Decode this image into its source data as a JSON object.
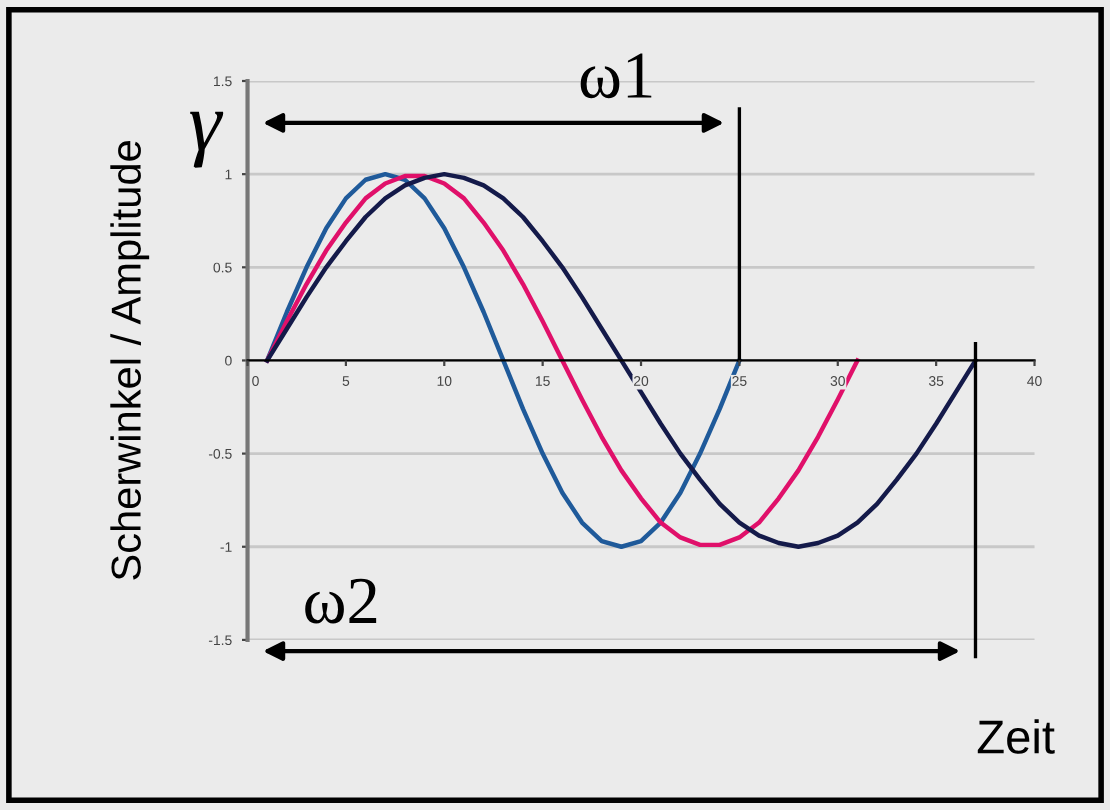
{
  "chart_data": {
    "type": "line",
    "ylabel": "Scherwinkel / Amplitude",
    "xlabel": "Zeit",
    "annotations": [
      "γ",
      "ω1",
      "ω2"
    ],
    "xlim": [
      0,
      40
    ],
    "xticks": [
      0,
      5,
      10,
      15,
      20,
      25,
      30,
      35,
      40
    ],
    "ylim": [
      -1.5,
      1.5
    ],
    "yticks": [
      -1.5,
      -1,
      -0.5,
      0,
      0.5,
      1,
      1.5
    ],
    "grid": "y",
    "marker": "none",
    "line_style": "solid",
    "ref_lines": [
      {
        "axis": "x",
        "value": 25,
        "color": "#000000"
      },
      {
        "axis": "x",
        "value": 37,
        "color": "#000000"
      }
    ],
    "series": [
      {
        "color": "#1f5a9a",
        "x": [
          1,
          2,
          3,
          4,
          5,
          6,
          7,
          8,
          9,
          10,
          11,
          12,
          13,
          14,
          15,
          16,
          17,
          18,
          19,
          20,
          21,
          22,
          23,
          24,
          25
        ],
        "values": [
          0,
          0.26,
          0.5,
          0.71,
          0.87,
          0.97,
          1,
          0.97,
          0.87,
          0.71,
          0.5,
          0.26,
          0,
          -0.26,
          -0.5,
          -0.71,
          -0.87,
          -0.97,
          -1,
          -0.97,
          -0.87,
          -0.71,
          -0.5,
          -0.26,
          0
        ]
      },
      {
        "color": "#e0106a",
        "x": [
          1,
          2,
          3,
          4,
          5,
          6,
          7,
          8,
          9,
          10,
          11,
          12,
          13,
          14,
          15,
          16,
          17,
          18,
          19,
          20,
          21,
          22,
          23,
          24,
          25,
          26,
          27,
          28,
          29,
          30,
          31
        ],
        "values": [
          0,
          0.21,
          0.41,
          0.59,
          0.74,
          0.87,
          0.95,
          0.99,
          0.99,
          0.95,
          0.87,
          0.74,
          0.59,
          0.41,
          0.21,
          0,
          -0.21,
          -0.41,
          -0.59,
          -0.74,
          -0.87,
          -0.95,
          -0.99,
          -0.99,
          -0.95,
          -0.87,
          -0.74,
          -0.59,
          -0.41,
          -0.21,
          0
        ]
      },
      {
        "color": "#141a4a",
        "x": [
          1,
          2,
          3,
          4,
          5,
          6,
          7,
          8,
          9,
          10,
          11,
          12,
          13,
          14,
          15,
          16,
          17,
          18,
          19,
          20,
          21,
          22,
          23,
          24,
          25,
          26,
          27,
          28,
          29,
          30,
          31,
          32,
          33,
          34,
          35,
          36,
          37
        ],
        "values": [
          0,
          0.17,
          0.34,
          0.5,
          0.64,
          0.77,
          0.87,
          0.94,
          0.98,
          1,
          0.98,
          0.94,
          0.87,
          0.77,
          0.64,
          0.5,
          0.34,
          0.17,
          0,
          -0.17,
          -0.34,
          -0.5,
          -0.64,
          -0.77,
          -0.87,
          -0.94,
          -0.98,
          -1,
          -0.98,
          -0.94,
          -0.87,
          -0.77,
          -0.64,
          -0.5,
          -0.34,
          -0.17,
          0
        ]
      }
    ]
  }
}
